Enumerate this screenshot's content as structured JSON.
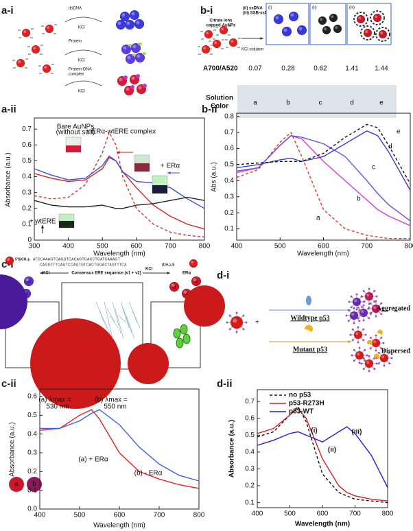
{
  "panel_labels": [
    "a-i",
    "b-i",
    "a-ii",
    "b-ii",
    "c-i",
    "d-i",
    "c-ii",
    "d-ii"
  ],
  "a_i": {
    "rows": [
      {
        "reagent": [
          "dsDNA"
        ],
        "salt": "KCl"
      },
      {
        "reagent": [
          "Protein"
        ],
        "salt": "KCl"
      },
      {
        "reagent": [
          "Protein-DNA",
          "complex"
        ],
        "salt": "KCl"
      }
    ]
  },
  "b_i": {
    "nanoparticles": [
      "Citrate ions",
      "capped-AuNPs"
    ],
    "conditions": [
      "(ii)  ssDNA",
      "(iii) SSB-ssDNA complex"
    ],
    "salt": "KCl solution",
    "boxes": [
      "(i)",
      "(ii)",
      "(iii)"
    ],
    "ratio_label": "A700/A520",
    "ratios": [
      0.07,
      0.28,
      0.62,
      1.41,
      1.44
    ],
    "color_label": [
      "Solution",
      "Color"
    ],
    "wells": [
      "a",
      "b",
      "c",
      "d",
      "e"
    ]
  },
  "c_i": {
    "linker_left": "5'S(CH₂)₆",
    "top_strand": "ATCCAAAGTCAGGTCACAGTGACCTGATCAAAGT",
    "bottom_strand": "CAGGTTTCAGTCCAGTGTCACTGGACTAGTTTCA",
    "linker_right": "(CH₂)₆S",
    "particles": [
      "v1",
      "v2"
    ],
    "left_salt": "KCl",
    "caption": "Consensus ERE sequence (v1 + v2)",
    "right_salt": "KCl",
    "protein": "ERα"
  },
  "d_i": {
    "plus": "+",
    "wildtype": "Wildtype p53",
    "aggregated": "Aggregated",
    "mutant": "Mutant p53",
    "dispersed": "Dispersed"
  },
  "chart_data": [
    {
      "type": "line",
      "x_label": "Wavelength (nm)",
      "y_label": "Absorbance (a.u.)",
      "x": [
        300,
        350,
        400,
        450,
        500,
        520,
        540,
        560,
        600,
        650,
        700,
        750,
        800
      ],
      "xlim": [
        300,
        800
      ],
      "xticks": [
        300,
        400,
        500,
        600,
        700,
        800
      ],
      "ylim": [
        0,
        0.77
      ],
      "yticks": [
        0,
        0.1,
        0.2,
        0.3,
        0.4,
        0.5,
        0.6,
        0.7
      ],
      "series": [
        {
          "color": "#e0302a",
          "style": "dashed",
          "values": [
            0.28,
            0.26,
            0.27,
            0.35,
            0.55,
            0.68,
            0.6,
            0.4,
            0.2,
            0.1,
            0.05,
            0.03,
            0.02
          ]
        },
        {
          "color": "#d92020",
          "style": "solid",
          "values": [
            0.42,
            0.39,
            0.37,
            0.38,
            0.45,
            0.52,
            0.5,
            0.43,
            0.33,
            0.22,
            0.15,
            0.1,
            0.07
          ]
        },
        {
          "color": "#3a4fd8",
          "style": "solid",
          "values": [
            0.45,
            0.41,
            0.38,
            0.39,
            0.47,
            0.53,
            0.5,
            0.43,
            0.37,
            0.36,
            0.33,
            0.26,
            0.2
          ]
        },
        {
          "color": "#222222",
          "style": "solid",
          "values": [
            0.25,
            0.22,
            0.21,
            0.21,
            0.22,
            0.21,
            0.2,
            0.2,
            0.22,
            0.23,
            0.25,
            0.27,
            0.25
          ]
        }
      ],
      "annotations": [
        "Bare AuNPs",
        "(without salt)",
        "+ ERα-wtERE complex",
        "+ ERα",
        "+ wtERE"
      ]
    },
    {
      "type": "line",
      "x_label": "Wavelength (nm)",
      "y_label": "Abs (a.u.)",
      "x": [
        400,
        450,
        500,
        525,
        550,
        600,
        650,
        700,
        725,
        750,
        800
      ],
      "xlim": [
        400,
        800
      ],
      "xticks": [
        400,
        500,
        600,
        700,
        800
      ],
      "ylim": [
        0.03,
        0.82
      ],
      "yticks": [
        0.1,
        0.2,
        0.3,
        0.4,
        0.5,
        0.6,
        0.7,
        0.8
      ],
      "series": [
        {
          "name": "a",
          "color": "#e8361f",
          "style": "dashed",
          "values": [
            0.42,
            0.47,
            0.64,
            0.7,
            0.55,
            0.22,
            0.1,
            0.06,
            0.05,
            0.04,
            0.04
          ]
        },
        {
          "name": "b",
          "color": "#d63ad6",
          "style": "solid",
          "values": [
            0.45,
            0.48,
            0.62,
            0.68,
            0.66,
            0.52,
            0.4,
            0.28,
            0.22,
            0.18,
            0.12
          ]
        },
        {
          "name": "c",
          "color": "#6a4ce8",
          "style": "solid",
          "values": [
            0.46,
            0.48,
            0.62,
            0.68,
            0.67,
            0.63,
            0.55,
            0.4,
            0.32,
            0.25,
            0.15
          ]
        },
        {
          "name": "d",
          "color": "#3a3ad0",
          "style": "solid",
          "values": [
            0.48,
            0.5,
            0.53,
            0.54,
            0.52,
            0.55,
            0.63,
            0.71,
            0.68,
            0.58,
            0.34
          ]
        },
        {
          "name": "e",
          "color": "#111111",
          "style": "dashed",
          "values": [
            0.5,
            0.51,
            0.52,
            0.52,
            0.52,
            0.57,
            0.67,
            0.75,
            0.73,
            0.62,
            0.38
          ]
        }
      ]
    },
    {
      "type": "line",
      "x_label": "Wavelength (nm)",
      "y_label": "Absorbance (a.u.)",
      "x": [
        400,
        450,
        500,
        530,
        550,
        600,
        650,
        700,
        750,
        800
      ],
      "xlim": [
        400,
        800
      ],
      "xticks": [
        400,
        500,
        600,
        700,
        800
      ],
      "ylim": [
        0,
        0.64
      ],
      "yticks": [
        {
          "value": 0,
          "label": "0.0"
        },
        0.1,
        0.2,
        0.3,
        0.4,
        0.5,
        0.6
      ],
      "series": [
        {
          "color": "#e82020",
          "style": "solid",
          "values": [
            0.42,
            0.43,
            0.5,
            0.53,
            0.48,
            0.3,
            0.2,
            0.16,
            0.13,
            0.11
          ]
        },
        {
          "color": "#3b5ee8",
          "style": "solid",
          "values": [
            0.43,
            0.43,
            0.47,
            0.51,
            0.53,
            0.45,
            0.33,
            0.24,
            0.18,
            0.15
          ]
        }
      ],
      "annotations": [
        "(a) λmax =",
        "530 nm",
        "(b) λmax =",
        "550 nm",
        "(a) + ERα",
        "(b) - ERα",
        "a",
        "b"
      ]
    },
    {
      "type": "line",
      "x_label": "Wavelength (nm)",
      "y_label": "Absorbance (a.u.)",
      "x": [
        400,
        450,
        500,
        525,
        550,
        600,
        650,
        675,
        700,
        750,
        800
      ],
      "xlim": [
        400,
        800
      ],
      "xticks": [
        400,
        500,
        600,
        700,
        800
      ],
      "ylim": [
        0.07,
        0.77
      ],
      "yticks": [
        0.1,
        0.2,
        0.3,
        0.4,
        0.5,
        0.6,
        0.7
      ],
      "legend": "upper left",
      "series": [
        {
          "name": "no p53",
          "color": "#111111",
          "style": "dashed",
          "values": [
            0.49,
            0.52,
            0.62,
            0.67,
            0.58,
            0.27,
            0.16,
            0.14,
            0.12,
            0.11,
            0.1
          ]
        },
        {
          "name": "p53-R273H",
          "color": "#d42020",
          "style": "solid",
          "values": [
            0.51,
            0.54,
            0.62,
            0.66,
            0.6,
            0.36,
            0.2,
            0.16,
            0.14,
            0.12,
            0.11
          ]
        },
        {
          "name": "p53-WT",
          "color": "#2020e0",
          "style": "solid",
          "values": [
            0.44,
            0.47,
            0.51,
            0.52,
            0.5,
            0.46,
            0.52,
            0.55,
            0.51,
            0.38,
            0.19
          ]
        }
      ],
      "annotations": [
        "(i)",
        "(ii)",
        "(iii)"
      ]
    }
  ]
}
